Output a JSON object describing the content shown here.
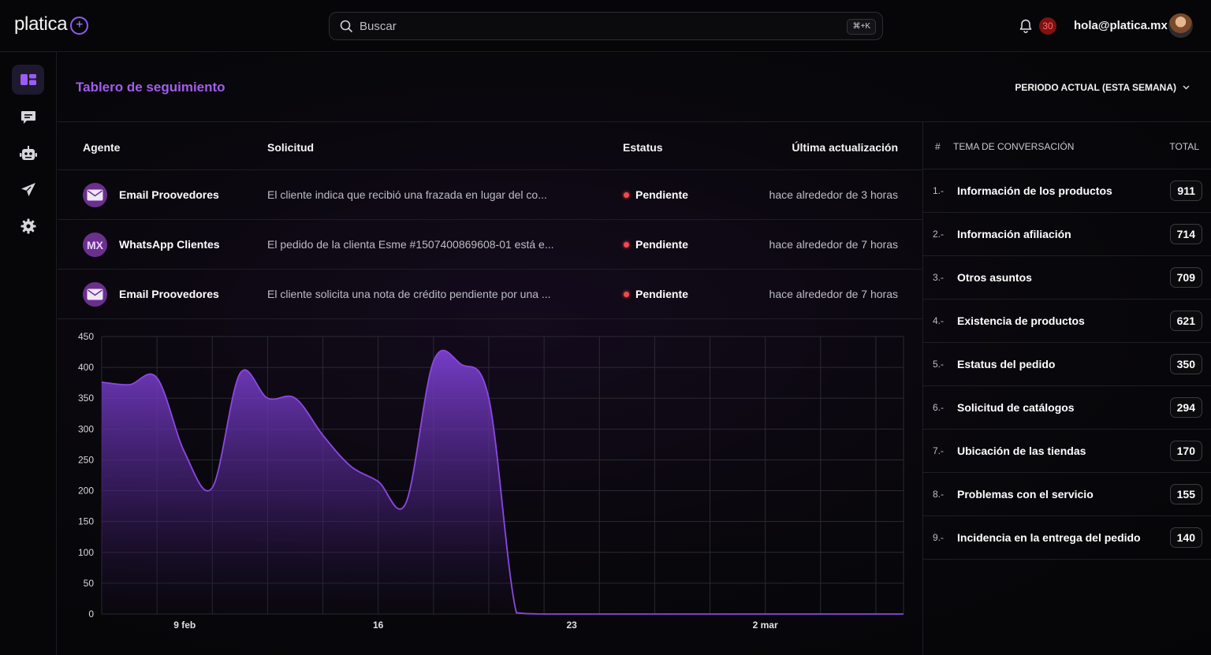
{
  "app": {
    "logo_text": "platica",
    "logo_mark": "+"
  },
  "search": {
    "placeholder": "Buscar",
    "shortcut": "⌘+K"
  },
  "header": {
    "notification_count": "30",
    "user_email": "hola@platica.mx"
  },
  "sidebar": {
    "items": [
      {
        "name": "dashboard",
        "icon": "dashboard-icon",
        "active": true
      },
      {
        "name": "messages",
        "icon": "chat-icon",
        "active": false
      },
      {
        "name": "bots",
        "icon": "robot-icon",
        "active": false
      },
      {
        "name": "campaigns",
        "icon": "send-icon",
        "active": false
      },
      {
        "name": "settings",
        "icon": "gear-icon",
        "active": false
      }
    ]
  },
  "page": {
    "title": "Tablero de seguimiento",
    "period_label": "PERIODO ACTUAL (ESTA SEMANA)"
  },
  "requests_table": {
    "columns": [
      "Agente",
      "Solicitud",
      "Estatus",
      "Última actualización"
    ],
    "rows": [
      {
        "avatar": "mail-icon",
        "agent": "Email Proovedores",
        "request": "El cliente indica que recibió una frazada en lugar del co...",
        "status": "Pendiente",
        "updated": "hace alrededor de 3 horas"
      },
      {
        "avatar_text": "MX",
        "agent": "WhatsApp Clientes",
        "request": "El pedido de la clienta Esme #1507400869608-01 está e...",
        "status": "Pendiente",
        "updated": "hace alrededor de 7 horas"
      },
      {
        "avatar": "mail-icon",
        "agent": "Email Proovedores",
        "request": "El cliente solicita una nota de crédito pendiente por una ...",
        "status": "Pendiente",
        "updated": "hace alrededor de 7 horas"
      }
    ]
  },
  "chart_data": {
    "type": "area",
    "title": "",
    "xlabel": "",
    "ylabel": "",
    "ylim": [
      0,
      450
    ],
    "yticks": [
      0,
      50,
      100,
      150,
      200,
      250,
      300,
      350,
      400,
      450
    ],
    "xlim": [
      "2026-02-06",
      "2026-03-07"
    ],
    "xticks": [
      {
        "date": "2026-02-09",
        "label": "9 feb"
      },
      {
        "date": "2026-02-16",
        "label": "16"
      },
      {
        "date": "2026-02-23",
        "label": "23"
      },
      {
        "date": "2026-03-02",
        "label": "2 mar"
      }
    ],
    "grid": true,
    "color": "#8b48e0",
    "x": [
      "2026-02-06",
      "2026-02-07",
      "2026-02-08",
      "2026-02-09",
      "2026-02-10",
      "2026-02-11",
      "2026-02-12",
      "2026-02-13",
      "2026-02-14",
      "2026-02-15",
      "2026-02-16",
      "2026-02-17",
      "2026-02-18",
      "2026-02-19",
      "2026-02-20",
      "2026-02-21",
      "2026-02-22",
      "2026-02-23",
      "2026-02-24",
      "2026-02-25",
      "2026-02-26",
      "2026-02-27",
      "2026-02-28",
      "2026-03-01",
      "2026-03-02",
      "2026-03-03",
      "2026-03-04",
      "2026-03-05",
      "2026-03-06",
      "2026-03-07"
    ],
    "values": [
      376,
      372,
      383,
      262,
      205,
      390,
      350,
      350,
      290,
      240,
      215,
      180,
      410,
      405,
      350,
      2,
      0,
      0,
      0,
      0,
      0,
      0,
      0,
      0,
      0,
      0,
      0,
      0,
      0,
      0
    ]
  },
  "topics_table": {
    "columns": {
      "index": "#",
      "topic": "TEMA DE CONVERSACIÓN",
      "total": "TOTAL"
    },
    "rows": [
      {
        "num": "1.-",
        "topic": "Información de los productos",
        "total": "911"
      },
      {
        "num": "2.-",
        "topic": "Información afiliación",
        "total": "714"
      },
      {
        "num": "3.-",
        "topic": "Otros asuntos",
        "total": "709"
      },
      {
        "num": "4.-",
        "topic": "Existencia de productos",
        "total": "621"
      },
      {
        "num": "5.-",
        "topic": "Estatus del pedido",
        "total": "350"
      },
      {
        "num": "6.-",
        "topic": "Solicitud de catálogos",
        "total": "294"
      },
      {
        "num": "7.-",
        "topic": "Ubicación de las tiendas",
        "total": "170"
      },
      {
        "num": "8.-",
        "topic": "Problemas con el servicio",
        "total": "155"
      },
      {
        "num": "9.-",
        "topic": "Incidencia en la entrega del pedido",
        "total": "140"
      }
    ]
  }
}
